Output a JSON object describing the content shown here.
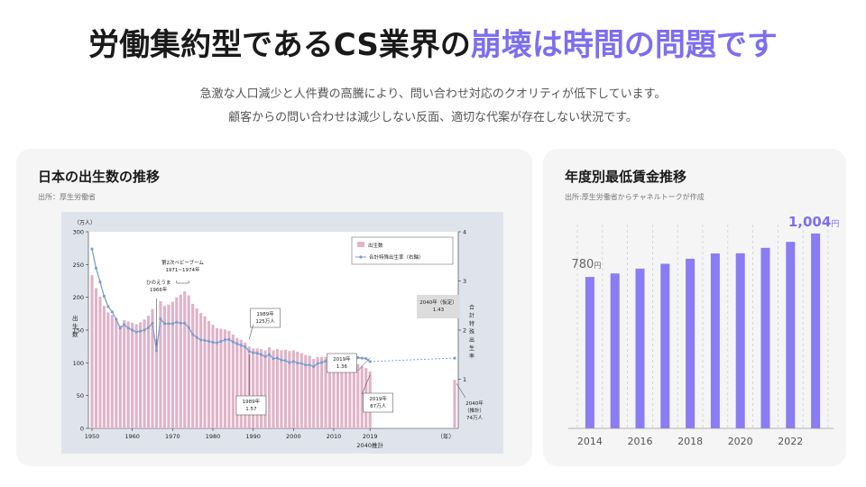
{
  "header": {
    "title_main": "労働集約型であるCS業界の",
    "title_highlight": "崩壊は時間の問題です",
    "subtitle_line1": "急激な人口減少と人件費の高騰により、問い合わせ対応のクオリティが低下しています。",
    "subtitle_line2": "顧客からの問い合わせは減少しない反面、適切な代案が存在しない状況です。"
  },
  "left_panel": {
    "title": "日本の出生数の推移",
    "source": "出所：厚生労働省"
  },
  "right_panel": {
    "title": "年度別最低賃金推移",
    "source": "出所:厚生労働省からチャネルトークが作成"
  },
  "chart_data": [
    {
      "type": "bar",
      "title": "",
      "left_axis_unit": "（万人）",
      "ylabel": "出生数",
      "y2label": "合計特殊出生率",
      "x_unit": "（年）",
      "ylim": [
        0,
        300
      ],
      "y2lim": [
        0,
        4
      ],
      "yticks": [
        0,
        50,
        100,
        150,
        200,
        250,
        300
      ],
      "y2ticks": [
        1,
        2,
        3,
        4
      ],
      "xtick_labels": [
        "1950",
        "1960",
        "1970",
        "1980",
        "1990",
        "2000",
        "2010",
        "2019"
      ],
      "xtick_extra": "2040推計",
      "legend_position": "top-right",
      "legend": [
        "出生数",
        "合計特殊出生率（右軸）"
      ],
      "colors": {
        "bars": "#e0b3c8",
        "line": "#7f9ed0"
      },
      "series": [
        {
          "name": "出生数",
          "x": [
            1950,
            1951,
            1952,
            1953,
            1954,
            1955,
            1956,
            1957,
            1958,
            1959,
            1960,
            1961,
            1962,
            1963,
            1964,
            1965,
            1966,
            1967,
            1968,
            1969,
            1970,
            1971,
            1972,
            1973,
            1974,
            1975,
            1976,
            1977,
            1978,
            1979,
            1980,
            1981,
            1982,
            1983,
            1984,
            1985,
            1986,
            1987,
            1988,
            1989,
            1990,
            1991,
            1992,
            1993,
            1994,
            1995,
            1996,
            1997,
            1998,
            1999,
            2000,
            2001,
            2002,
            2003,
            2004,
            2005,
            2006,
            2007,
            2008,
            2009,
            2010,
            2011,
            2012,
            2013,
            2014,
            2015,
            2016,
            2017,
            2018,
            2019,
            2040
          ],
          "values": [
            234,
            214,
            201,
            187,
            177,
            173,
            167,
            157,
            165,
            163,
            161,
            159,
            162,
            166,
            172,
            182,
            136,
            194,
            187,
            189,
            193,
            200,
            204,
            209,
            203,
            190,
            183,
            176,
            171,
            164,
            158,
            153,
            152,
            151,
            149,
            143,
            138,
            135,
            131,
            125,
            122,
            122,
            121,
            119,
            124,
            119,
            121,
            119,
            120,
            118,
            119,
            117,
            115,
            112,
            111,
            106,
            109,
            109,
            109,
            107,
            107,
            105,
            104,
            103,
            100,
            101,
            98,
            95,
            92,
            87,
            74
          ]
        },
        {
          "name": "合計特殊出生率",
          "x": [
            1950,
            1951,
            1952,
            1953,
            1954,
            1955,
            1956,
            1957,
            1958,
            1959,
            1960,
            1961,
            1962,
            1963,
            1964,
            1965,
            1966,
            1967,
            1968,
            1969,
            1970,
            1971,
            1972,
            1973,
            1974,
            1975,
            1976,
            1977,
            1978,
            1979,
            1980,
            1981,
            1982,
            1983,
            1984,
            1985,
            1986,
            1987,
            1988,
            1989,
            1990,
            1991,
            1992,
            1993,
            1994,
            1995,
            1996,
            1997,
            1998,
            1999,
            2000,
            2001,
            2002,
            2003,
            2004,
            2005,
            2006,
            2007,
            2008,
            2009,
            2010,
            2011,
            2012,
            2013,
            2014,
            2015,
            2016,
            2017,
            2018,
            2019,
            2040
          ],
          "values": [
            3.65,
            3.26,
            2.98,
            2.69,
            2.48,
            2.37,
            2.22,
            2.04,
            2.11,
            2.04,
            2.0,
            1.96,
            1.98,
            2.0,
            2.05,
            2.14,
            1.58,
            2.23,
            2.13,
            2.13,
            2.13,
            2.16,
            2.14,
            2.14,
            2.05,
            1.91,
            1.85,
            1.8,
            1.79,
            1.77,
            1.75,
            1.74,
            1.77,
            1.8,
            1.81,
            1.76,
            1.72,
            1.69,
            1.66,
            1.57,
            1.54,
            1.53,
            1.5,
            1.46,
            1.5,
            1.42,
            1.43,
            1.39,
            1.38,
            1.34,
            1.36,
            1.33,
            1.32,
            1.29,
            1.29,
            1.26,
            1.32,
            1.34,
            1.37,
            1.37,
            1.39,
            1.39,
            1.41,
            1.43,
            1.42,
            1.45,
            1.44,
            1.43,
            1.42,
            1.36,
            1.43
          ]
        }
      ],
      "annotations": [
        {
          "id": "babyboom",
          "text": [
            "第2次ベビーブーム",
            "1971~1974年"
          ]
        },
        {
          "id": "hinoe",
          "text": [
            "ひのえうま",
            "1966年"
          ]
        },
        {
          "id": "b1989",
          "text": [
            "1989年",
            "125万人"
          ]
        },
        {
          "id": "r1989",
          "text": [
            "1989年",
            "1.57"
          ]
        },
        {
          "id": "r2019",
          "text": [
            "2019年",
            "1.36"
          ]
        },
        {
          "id": "r2040",
          "text": [
            "2040年（仮定）",
            "1.43"
          ]
        },
        {
          "id": "b2019",
          "text": [
            "2019年",
            "87万人"
          ]
        },
        {
          "id": "b2040",
          "text": [
            "2040年",
            "（推計）",
            "74万人"
          ]
        }
      ]
    },
    {
      "type": "bar",
      "title": "",
      "xlabel": "",
      "ylabel": "",
      "categories": [
        "2014",
        "2015",
        "2016",
        "2017",
        "2018",
        "2019",
        "2020",
        "2021",
        "2022",
        "2023"
      ],
      "xtick_labels": [
        "2014",
        "2016",
        "2018",
        "2020",
        "2022"
      ],
      "values": [
        780,
        798,
        823,
        848,
        874,
        901,
        902,
        930,
        961,
        1004
      ],
      "ylim": [
        0,
        1050
      ],
      "labeled_points": [
        {
          "value": "780",
          "unit": "円",
          "color": "#666666"
        },
        {
          "value": "1,004",
          "unit": "円",
          "color": "#7d6ef0"
        }
      ],
      "grid": "vertical-dashed",
      "colors": {
        "bars": "#8a7cf2"
      }
    }
  ]
}
